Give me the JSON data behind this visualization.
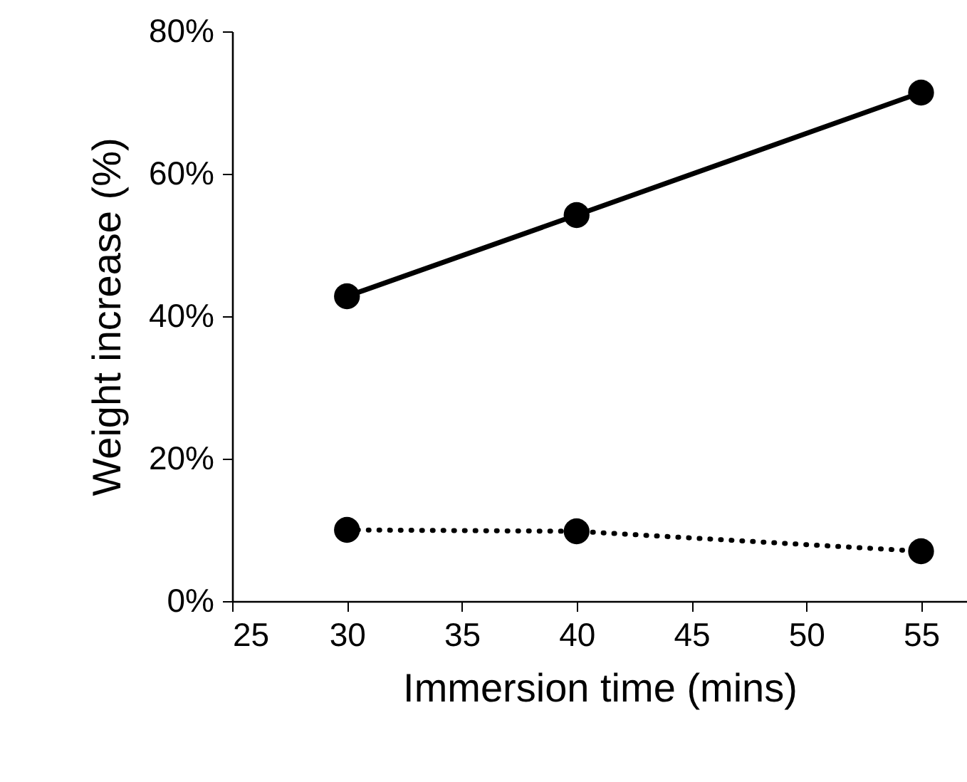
{
  "chart_data": {
    "type": "line",
    "xlabel": "Immersion time (mins)",
    "ylabel": "Weight increase (%)",
    "xlim": [
      25,
      57
    ],
    "xticks": [
      25,
      30,
      35,
      40,
      45,
      50,
      55
    ],
    "ylim": [
      0,
      80
    ],
    "yticks": [
      {
        "value": 0,
        "label": "0%"
      },
      {
        "value": 20,
        "label": "20%"
      },
      {
        "value": 40,
        "label": "40%"
      },
      {
        "value": 60,
        "label": "60%"
      },
      {
        "value": 80,
        "label": "80%"
      }
    ],
    "grid": false,
    "marker": "circle",
    "series": [
      {
        "color": "#000000",
        "line_style": "solid",
        "x": [
          30,
          40,
          55
        ],
        "values": [
          42.8,
          54.2,
          71.4
        ]
      },
      {
        "color": "#000000",
        "line_style": "dotted",
        "x": [
          30,
          40,
          55
        ],
        "values": [
          10,
          9.8,
          7
        ]
      }
    ]
  }
}
